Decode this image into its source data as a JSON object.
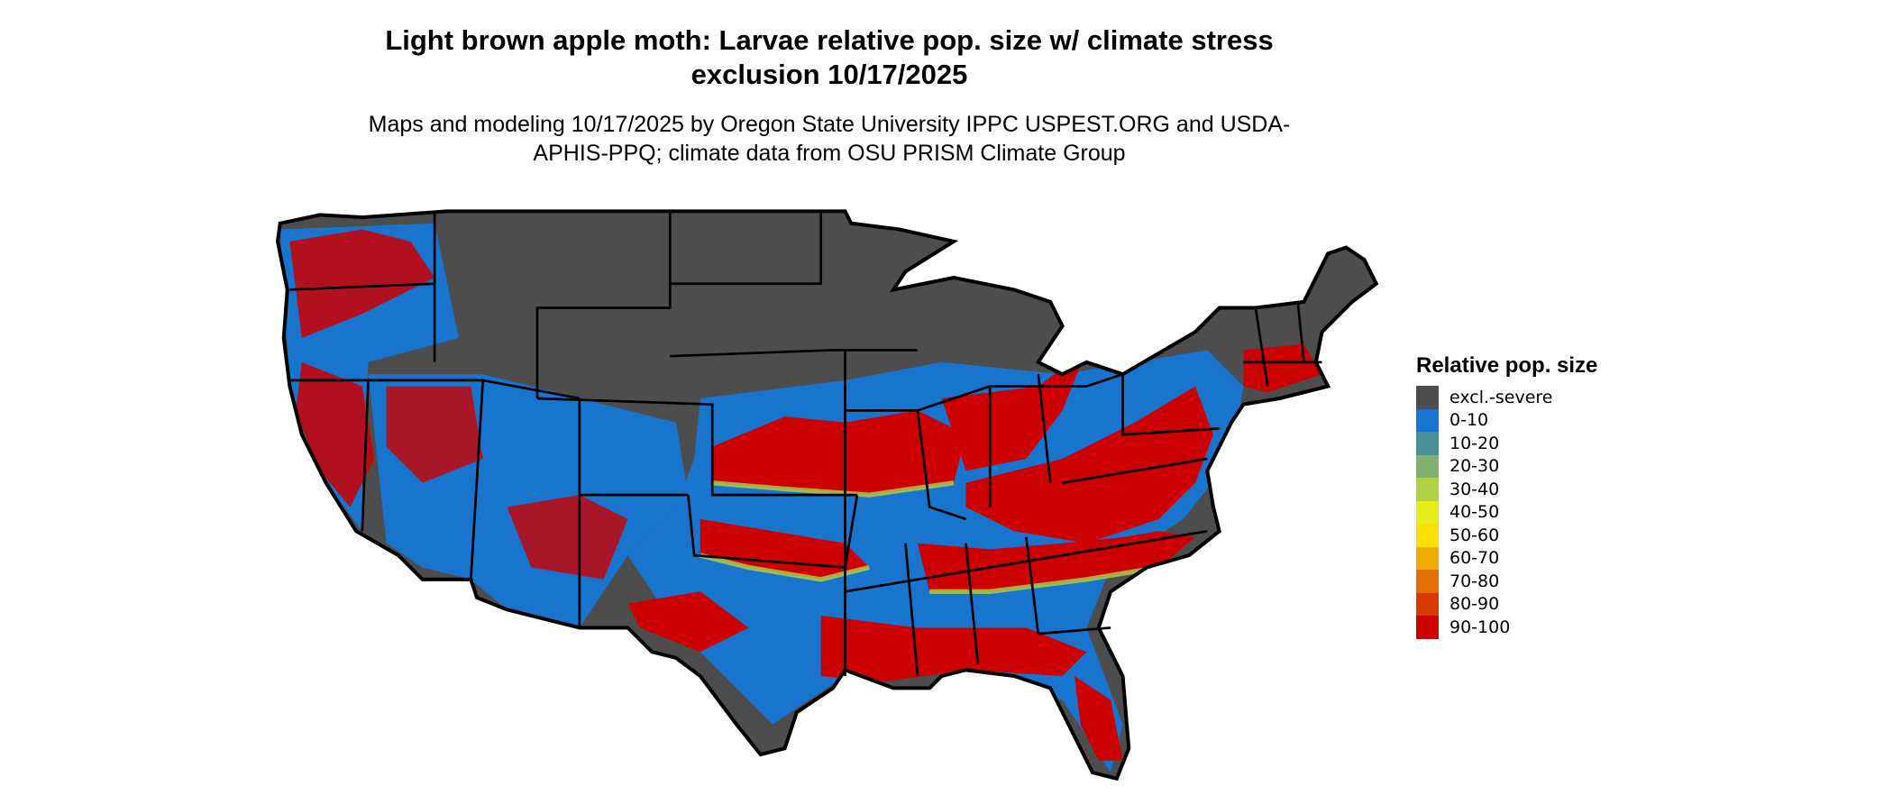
{
  "title": "Light brown apple moth: Larvae relative pop. size w/ climate stress exclusion 10/17/2025",
  "subtitle": "Maps and modeling 10/17/2025 by Oregon State University IPPC USPEST.ORG and USDA-APHIS-PPQ; climate data from OSU PRISM Climate Group",
  "legend": {
    "title": "Relative pop. size",
    "items": [
      {
        "label": "excl.-severe",
        "color": "#4d4d4d"
      },
      {
        "label": "0-10",
        "color": "#1874cd"
      },
      {
        "label": "10-20",
        "color": "#4a9098"
      },
      {
        "label": "20-30",
        "color": "#7fb070"
      },
      {
        "label": "30-40",
        "color": "#b2d147"
      },
      {
        "label": "40-50",
        "color": "#e5ee1a"
      },
      {
        "label": "50-60",
        "color": "#f9e000"
      },
      {
        "label": "60-70",
        "color": "#f0ac00"
      },
      {
        "label": "70-80",
        "color": "#e37100"
      },
      {
        "label": "80-90",
        "color": "#d93800"
      },
      {
        "label": "90-100",
        "color": "#cc0000"
      }
    ]
  }
}
